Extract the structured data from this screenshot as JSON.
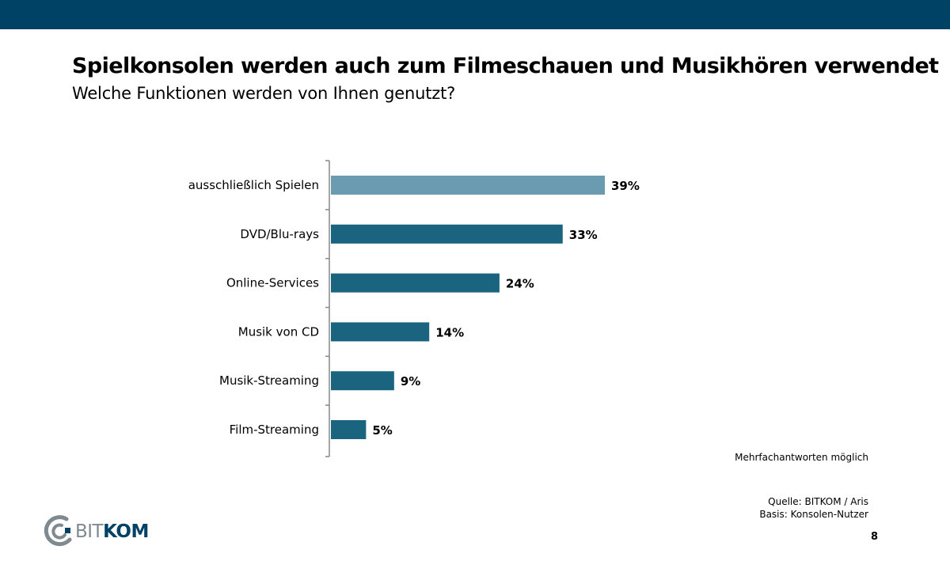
{
  "header": {
    "title": "Spielkonsolen werden auch zum Filmeschauen und Musikhören verwendet",
    "subtitle": "Welche Funktionen werden von Ihnen genutzt?"
  },
  "chart_data": {
    "type": "bar",
    "orientation": "horizontal",
    "categories": [
      "ausschließlich Spielen",
      "DVD/Blu-rays",
      "Online-Services",
      "Musik von CD",
      "Musik-Streaming",
      "Film-Streaming"
    ],
    "values": [
      39,
      33,
      24,
      14,
      9,
      5
    ],
    "value_labels": [
      "39%",
      "33%",
      "24%",
      "14%",
      "9%",
      "5%"
    ],
    "unit": "%",
    "xlim": [
      0,
      39
    ],
    "grid": false,
    "legend": "none",
    "colors": [
      "#6a9bb0",
      "#1a6480",
      "#1a6480",
      "#1a6480",
      "#1a6480",
      "#1a6480"
    ]
  },
  "footer": {
    "note": "Mehrfachantworten möglich",
    "source": "Quelle: BITKOM / Aris",
    "basis": "Basis: Konsolen-Nutzer",
    "page_number": "8"
  },
  "logo": {
    "text_part1": "BIT",
    "text_part2": "KOM",
    "icon": "bitkom-logo-icon"
  },
  "colors": {
    "top_bar": "#004266",
    "bar_primary": "#1a6480",
    "bar_highlight": "#6a9bb0",
    "axis": "#888888"
  }
}
